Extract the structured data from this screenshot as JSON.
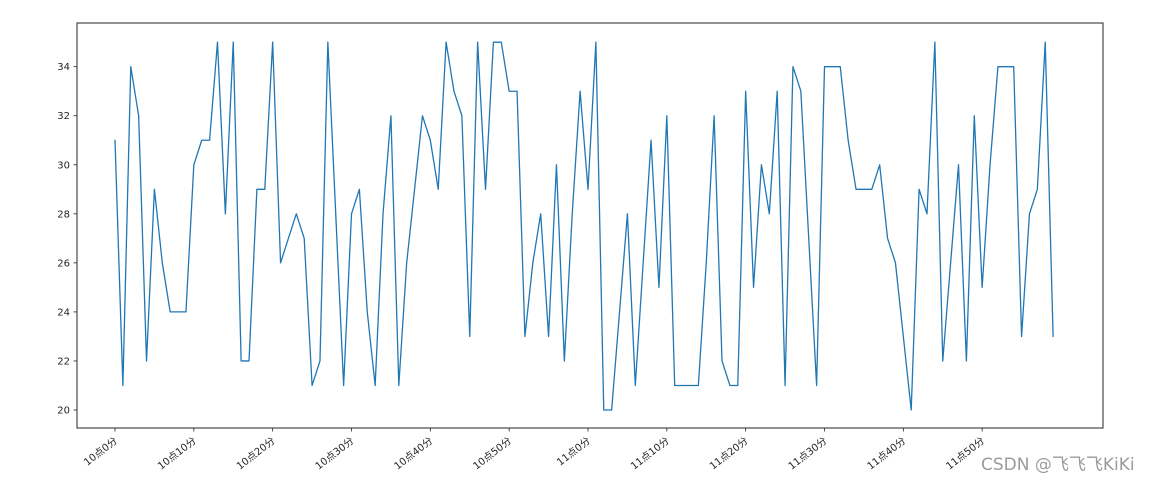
{
  "watermark": "CSDN @飞飞飞KiKi",
  "colors": {
    "line": "#1f77b4",
    "axis": "#262626",
    "tick_label": "#262626",
    "watermark": "#9b9b9b",
    "background": "#ffffff"
  },
  "chart_data": {
    "type": "line",
    "title": "",
    "xlabel": "",
    "ylabel": "",
    "legend": null,
    "grid": false,
    "x_tick_labels": [
      "10点0分",
      "10点10分",
      "10点20分",
      "10点30分",
      "10点40分",
      "10点50分",
      "11点0分",
      "11点10分",
      "11点20分",
      "11点30分",
      "11点40分",
      "11点50分"
    ],
    "x_tick_minute_index": [
      0,
      10,
      20,
      30,
      40,
      50,
      60,
      70,
      80,
      90,
      100,
      110
    ],
    "y_ticks": [
      20,
      22,
      24,
      26,
      28,
      30,
      32,
      34
    ],
    "ylim": [
      19.25,
      35.75
    ],
    "x_minute_count": 120,
    "values": [
      31,
      21,
      34,
      32,
      22,
      29,
      26,
      24,
      24,
      24,
      30,
      31,
      31,
      35,
      28,
      35,
      22,
      22,
      29,
      29,
      35,
      26,
      27,
      28,
      27,
      21,
      22,
      35,
      28,
      21,
      28,
      29,
      24,
      21,
      28,
      32,
      21,
      26,
      29,
      32,
      31,
      29,
      35,
      33,
      32,
      23,
      35,
      29,
      35,
      35,
      33,
      33,
      23,
      26,
      28,
      23,
      30,
      22,
      28,
      33,
      29,
      35,
      20,
      20,
      24,
      28,
      21,
      26,
      31,
      25,
      32,
      21,
      21,
      21,
      21,
      26,
      32,
      22,
      21,
      21,
      33,
      25,
      30,
      28,
      33,
      21,
      34,
      33,
      27,
      21,
      34,
      34,
      34,
      31,
      29,
      29,
      29,
      30,
      27,
      26,
      23,
      20,
      29,
      28,
      35,
      22,
      26,
      30,
      22,
      32,
      25,
      30,
      34,
      34,
      34,
      23,
      28,
      29,
      35,
      23
    ]
  }
}
